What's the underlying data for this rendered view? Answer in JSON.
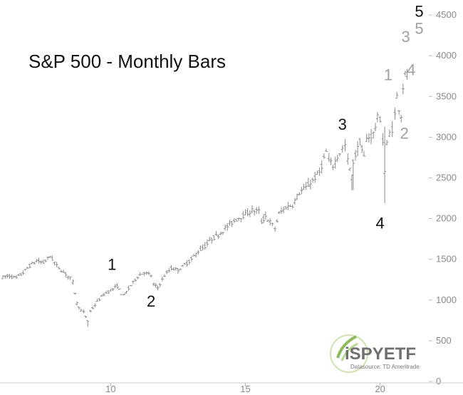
{
  "chart_data": {
    "type": "ohlc",
    "title": "S&P 500 - Monthly Bars",
    "xlabel": "",
    "ylabel": "",
    "xlim": [
      2006.0,
      2021.7
    ],
    "ylim": [
      0,
      4650
    ],
    "x_ticks": [
      {
        "value": 2010,
        "label": "10"
      },
      {
        "value": 2015,
        "label": "15"
      },
      {
        "value": 2020,
        "label": "20"
      }
    ],
    "y_ticks": [
      0,
      500,
      1000,
      1500,
      2000,
      2500,
      3000,
      3500,
      4000,
      4500
    ],
    "grid": false,
    "bar_color": "#8c8c8c",
    "series": [
      {
        "values": [
          {
            "t": 2006.0,
            "c": 1280
          },
          {
            "t": 2006.25,
            "c": 1295
          },
          {
            "t": 2006.5,
            "c": 1270
          },
          {
            "t": 2006.75,
            "c": 1335
          },
          {
            "t": 2007.0,
            "c": 1420
          },
          {
            "t": 2007.25,
            "c": 1480
          },
          {
            "t": 2007.5,
            "c": 1455
          },
          {
            "t": 2007.75,
            "c": 1540
          },
          {
            "t": 2008.0,
            "c": 1420
          },
          {
            "t": 2008.25,
            "c": 1340
          },
          {
            "t": 2008.5,
            "c": 1270
          },
          {
            "t": 2008.6,
            "c": 1220
          },
          {
            "t": 2008.75,
            "c": 960
          },
          {
            "t": 2008.9,
            "c": 870
          },
          {
            "t": 2009.0,
            "c": 850
          },
          {
            "t": 2009.15,
            "c": 740
          },
          {
            "t": 2009.25,
            "c": 860
          },
          {
            "t": 2009.5,
            "c": 980
          },
          {
            "t": 2009.75,
            "c": 1070
          },
          {
            "t": 2010.0,
            "c": 1120
          },
          {
            "t": 2010.25,
            "c": 1170
          },
          {
            "t": 2010.4,
            "c": 1080
          },
          {
            "t": 2010.5,
            "c": 1060
          },
          {
            "t": 2010.75,
            "c": 1180
          },
          {
            "t": 2011.0,
            "c": 1290
          },
          {
            "t": 2011.25,
            "c": 1340
          },
          {
            "t": 2011.5,
            "c": 1300
          },
          {
            "t": 2011.6,
            "c": 1190
          },
          {
            "t": 2011.75,
            "c": 1150
          },
          {
            "t": 2012.0,
            "c": 1300
          },
          {
            "t": 2012.25,
            "c": 1390
          },
          {
            "t": 2012.5,
            "c": 1370
          },
          {
            "t": 2012.75,
            "c": 1430
          },
          {
            "t": 2013.0,
            "c": 1500
          },
          {
            "t": 2013.25,
            "c": 1600
          },
          {
            "t": 2013.5,
            "c": 1660
          },
          {
            "t": 2013.75,
            "c": 1750
          },
          {
            "t": 2014.0,
            "c": 1800
          },
          {
            "t": 2014.25,
            "c": 1880
          },
          {
            "t": 2014.5,
            "c": 1950
          },
          {
            "t": 2014.75,
            "c": 2010
          },
          {
            "t": 2015.0,
            "c": 2050
          },
          {
            "t": 2015.25,
            "c": 2100
          },
          {
            "t": 2015.5,
            "c": 2090
          },
          {
            "t": 2015.6,
            "c": 1960
          },
          {
            "t": 2015.75,
            "c": 2030
          },
          {
            "t": 2016.0,
            "c": 1920
          },
          {
            "t": 2016.1,
            "c": 1880
          },
          {
            "t": 2016.25,
            "c": 2060
          },
          {
            "t": 2016.5,
            "c": 2140
          },
          {
            "t": 2016.75,
            "c": 2170
          },
          {
            "t": 2017.0,
            "c": 2320
          },
          {
            "t": 2017.25,
            "c": 2380
          },
          {
            "t": 2017.5,
            "c": 2470
          },
          {
            "t": 2017.75,
            "c": 2570
          },
          {
            "t": 2018.0,
            "c": 2820
          },
          {
            "t": 2018.1,
            "c": 2710
          },
          {
            "t": 2018.25,
            "c": 2650
          },
          {
            "t": 2018.5,
            "c": 2810
          },
          {
            "t": 2018.7,
            "c": 2900
          },
          {
            "t": 2018.8,
            "c": 2710
          },
          {
            "t": 2018.95,
            "c": 2510
          },
          {
            "t": 2019.0,
            "c": 2700
          },
          {
            "t": 2019.25,
            "c": 2940
          },
          {
            "t": 2019.4,
            "c": 2750
          },
          {
            "t": 2019.5,
            "c": 2980
          },
          {
            "t": 2019.75,
            "c": 3040
          },
          {
            "t": 2019.9,
            "c": 3230
          },
          {
            "t": 2020.0,
            "c": 3230
          },
          {
            "t": 2020.1,
            "c": 2950
          },
          {
            "t": 2020.17,
            "c": 2580
          },
          {
            "t": 2020.25,
            "c": 2910
          },
          {
            "t": 2020.35,
            "c": 3050
          },
          {
            "t": 2020.45,
            "c": 3100
          },
          {
            "t": 2020.55,
            "c": 3270
          },
          {
            "t": 2020.62,
            "c": 3500
          },
          {
            "t": 2020.7,
            "c": 3360
          },
          {
            "t": 2020.78,
            "c": 3270
          },
          {
            "t": 2020.85,
            "c": 3620
          },
          {
            "t": 2020.93,
            "c": 3760
          },
          {
            "t": 2021.0,
            "c": 3800
          }
        ]
      }
    ],
    "annotations": [
      {
        "text": "1",
        "x": 2010.05,
        "y": 1370,
        "color": "#111111"
      },
      {
        "text": "2",
        "x": 2011.5,
        "y": 920,
        "color": "#111111"
      },
      {
        "text": "3",
        "x": 2018.6,
        "y": 3090,
        "color": "#111111"
      },
      {
        "text": "4",
        "x": 2020.0,
        "y": 1880,
        "color": "#111111"
      },
      {
        "text": "5",
        "x": 2021.45,
        "y": 4480,
        "color": "#111111"
      },
      {
        "text": "1",
        "x": 2020.3,
        "y": 3700,
        "color": "#a0a0a0"
      },
      {
        "text": "2",
        "x": 2020.9,
        "y": 2980,
        "color": "#a0a0a0"
      },
      {
        "text": "3",
        "x": 2020.95,
        "y": 4170,
        "color": "#a0a0a0"
      },
      {
        "text": "4",
        "x": 2021.15,
        "y": 3760,
        "color": "#a0a0a0"
      },
      {
        "text": "5",
        "x": 2021.45,
        "y": 4270,
        "color": "#a0a0a0"
      }
    ]
  },
  "logo": {
    "name": "iSPYETF",
    "sub": "Datasource: TD Ameritrade"
  }
}
